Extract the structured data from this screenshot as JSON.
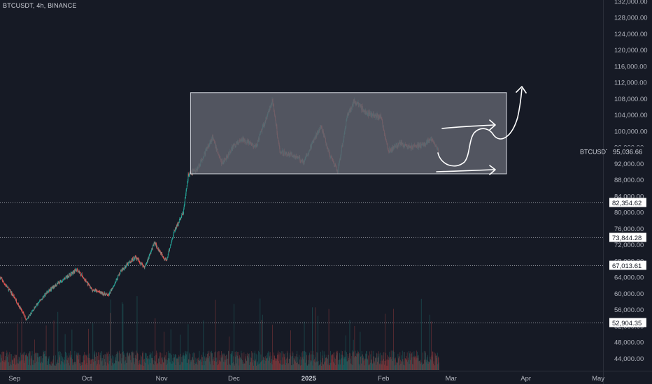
{
  "header": {
    "symbol_line": "BTCUSDT, 4h, BINANCE"
  },
  "chart_data": {
    "type": "candlestick",
    "symbol": "BTCUSDT",
    "timeframe": "4h",
    "exchange": "BINANCE",
    "y_axis": {
      "min": 42000,
      "max": 132000,
      "ticks": [
        "132,000.00",
        "128,000.00",
        "124,000.00",
        "120,000.00",
        "116,000.00",
        "112,000.00",
        "108,000.00",
        "104,000.00",
        "100,000.00",
        "96,000.00",
        "92,000.00",
        "88,000.00",
        "84,000.00",
        "80,000.00",
        "76,000.00",
        "72,000.00",
        "68,000.00",
        "64,000.00",
        "60,000.00",
        "56,000.00",
        "52,000.00",
        "48,000.00",
        "44,000.00"
      ],
      "tick_values": [
        132000,
        128000,
        124000,
        120000,
        116000,
        112000,
        108000,
        104000,
        100000,
        96000,
        92000,
        88000,
        84000,
        80000,
        76000,
        72000,
        68000,
        64000,
        60000,
        56000,
        52000,
        48000,
        44000
      ]
    },
    "x_axis": {
      "start": "2024-08-26",
      "end": "2025-05-03",
      "labels": [
        {
          "text": "Sep",
          "date": "2024-09-01",
          "bold": false
        },
        {
          "text": "Oct",
          "date": "2024-10-01",
          "bold": false
        },
        {
          "text": "Nov",
          "date": "2024-11-01",
          "bold": false
        },
        {
          "text": "Dec",
          "date": "2024-12-01",
          "bold": false
        },
        {
          "text": "2025",
          "date": "2025-01-01",
          "bold": true
        },
        {
          "text": "Feb",
          "date": "2025-02-01",
          "bold": false
        },
        {
          "text": "Mar",
          "date": "2025-03-01",
          "bold": false
        },
        {
          "text": "Apr",
          "date": "2025-04-01",
          "bold": false
        },
        {
          "text": "May",
          "date": "2025-05-01",
          "bold": false
        }
      ]
    },
    "price_path": [
      [
        "2024-08-26",
        64000
      ],
      [
        "2024-09-01",
        59000
      ],
      [
        "2024-09-06",
        53500
      ],
      [
        "2024-09-10",
        57000
      ],
      [
        "2024-09-14",
        60000
      ],
      [
        "2024-09-20",
        63000
      ],
      [
        "2024-09-27",
        66000
      ],
      [
        "2024-10-03",
        61000
      ],
      [
        "2024-10-10",
        59500
      ],
      [
        "2024-10-15",
        65500
      ],
      [
        "2024-10-21",
        69000
      ],
      [
        "2024-10-25",
        66500
      ],
      [
        "2024-10-29",
        72500
      ],
      [
        "2024-11-03",
        68000
      ],
      [
        "2024-11-06",
        75000
      ],
      [
        "2024-11-10",
        80000
      ],
      [
        "2024-11-12",
        89000
      ],
      [
        "2024-11-16",
        91000
      ],
      [
        "2024-11-22",
        98500
      ],
      [
        "2024-11-26",
        92000
      ],
      [
        "2024-12-01",
        96500
      ],
      [
        "2024-12-05",
        98000
      ],
      [
        "2024-12-10",
        96000
      ],
      [
        "2024-12-13",
        101000
      ],
      [
        "2024-12-17",
        107500
      ],
      [
        "2024-12-20",
        95000
      ],
      [
        "2024-12-26",
        94000
      ],
      [
        "2024-12-30",
        92500
      ],
      [
        "2025-01-06",
        101500
      ],
      [
        "2025-01-10",
        93500
      ],
      [
        "2025-01-13",
        90000
      ],
      [
        "2025-01-17",
        104000
      ],
      [
        "2025-01-20",
        107500
      ],
      [
        "2025-01-25",
        104500
      ],
      [
        "2025-01-31",
        103500
      ],
      [
        "2025-02-03",
        95000
      ],
      [
        "2025-02-08",
        97000
      ],
      [
        "2025-02-12",
        96000
      ],
      [
        "2025-02-17",
        96500
      ],
      [
        "2025-02-21",
        98000
      ],
      [
        "2025-02-24",
        95036.66
      ]
    ],
    "horizontal_levels": [
      {
        "label": "82,354.62",
        "value": 82354.62
      },
      {
        "label": "73,844.28",
        "value": 73844.28
      },
      {
        "label": "67,013.61",
        "value": 67013.61
      },
      {
        "label": "52,904.35",
        "value": 52904.35
      }
    ],
    "current_price": {
      "symbol_tag": "BTCUSDT",
      "label": "95,036.66",
      "value": 95036.66
    },
    "range_box": {
      "start": "2024-11-13",
      "end": "2025-03-24",
      "top": 109500,
      "bottom": 89500
    },
    "grid": false,
    "legend": "none",
    "colors": {
      "background": "#161a25",
      "bull": "#26a69a",
      "bear": "#ef5350",
      "axis_text": "#b2b5be",
      "box_fill": "#5d606b",
      "drawing": "#ffffff"
    }
  }
}
